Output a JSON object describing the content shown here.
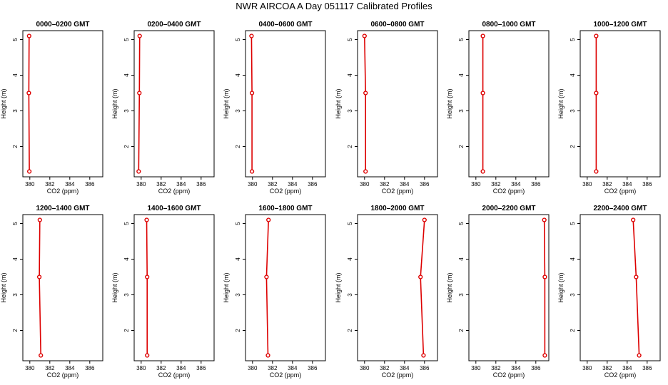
{
  "title": "NWR AIRCOA A  Day 051117  Calibrated Profiles",
  "colors": {
    "profile": "#dd0000",
    "axis": "#000000",
    "background": "#ffffff"
  },
  "chart_data": [
    {
      "type": "line",
      "title": "0000–0200 GMT",
      "xlabel": "CO2 (ppm)",
      "ylabel": "Height (m)",
      "xlim": [
        379.3,
        387.3
      ],
      "ylim": [
        1.15,
        5.25
      ],
      "xticks": [
        380,
        382,
        384,
        386
      ],
      "yticks": [
        2,
        3,
        4,
        5
      ],
      "x": [
        379.95,
        379.9,
        379.93
      ],
      "y": [
        1.3,
        3.5,
        5.1
      ],
      "grid": false
    },
    {
      "type": "line",
      "title": "0200–0400 GMT",
      "xlabel": "CO2 (ppm)",
      "ylabel": "Height (m)",
      "xlim": [
        379.3,
        387.3
      ],
      "ylim": [
        1.15,
        5.25
      ],
      "xticks": [
        380,
        382,
        384,
        386
      ],
      "yticks": [
        2,
        3,
        4,
        5
      ],
      "x": [
        379.75,
        379.82,
        379.85
      ],
      "y": [
        1.3,
        3.5,
        5.1
      ],
      "grid": false
    },
    {
      "type": "line",
      "title": "0400–0600 GMT",
      "xlabel": "CO2 (ppm)",
      "ylabel": "Height (m)",
      "xlim": [
        379.3,
        387.3
      ],
      "ylim": [
        1.15,
        5.25
      ],
      "xticks": [
        380,
        382,
        384,
        386
      ],
      "yticks": [
        2,
        3,
        4,
        5
      ],
      "x": [
        379.95,
        379.95,
        379.9
      ],
      "y": [
        1.3,
        3.5,
        5.1
      ],
      "grid": false
    },
    {
      "type": "line",
      "title": "0600–0800 GMT",
      "xlabel": "CO2 (ppm)",
      "ylabel": "Height (m)",
      "xlim": [
        379.3,
        387.3
      ],
      "ylim": [
        1.15,
        5.25
      ],
      "xticks": [
        380,
        382,
        384,
        386
      ],
      "yticks": [
        2,
        3,
        4,
        5
      ],
      "x": [
        380.1,
        380.1,
        380.0
      ],
      "y": [
        1.3,
        3.5,
        5.1
      ],
      "grid": false
    },
    {
      "type": "line",
      "title": "0800–1000 GMT",
      "xlabel": "CO2 (ppm)",
      "ylabel": "Height (m)",
      "xlim": [
        379.3,
        387.3
      ],
      "ylim": [
        1.15,
        5.25
      ],
      "xticks": [
        380,
        382,
        384,
        386
      ],
      "yticks": [
        2,
        3,
        4,
        5
      ],
      "x": [
        380.7,
        380.7,
        380.7
      ],
      "y": [
        1.3,
        3.5,
        5.1
      ],
      "grid": false
    },
    {
      "type": "line",
      "title": "1000–1200 GMT",
      "xlabel": "CO2 (ppm)",
      "ylabel": "Height (m)",
      "xlim": [
        379.3,
        387.3
      ],
      "ylim": [
        1.15,
        5.25
      ],
      "xticks": [
        380,
        382,
        384,
        386
      ],
      "yticks": [
        2,
        3,
        4,
        5
      ],
      "x": [
        380.9,
        380.9,
        380.9
      ],
      "y": [
        1.3,
        3.5,
        5.1
      ],
      "grid": false
    },
    {
      "type": "line",
      "title": "1200–1400 GMT",
      "xlabel": "CO2 (ppm)",
      "ylabel": "Height (m)",
      "xlim": [
        379.3,
        387.3
      ],
      "ylim": [
        1.15,
        5.25
      ],
      "xticks": [
        380,
        382,
        384,
        386
      ],
      "yticks": [
        2,
        3,
        4,
        5
      ],
      "x": [
        381.1,
        380.95,
        381.0
      ],
      "y": [
        1.3,
        3.5,
        5.1
      ],
      "grid": false
    },
    {
      "type": "line",
      "title": "1400–1600 GMT",
      "xlabel": "CO2 (ppm)",
      "ylabel": "Height (m)",
      "xlim": [
        379.3,
        387.3
      ],
      "ylim": [
        1.15,
        5.25
      ],
      "xticks": [
        380,
        382,
        384,
        386
      ],
      "yticks": [
        2,
        3,
        4,
        5
      ],
      "x": [
        380.6,
        380.6,
        380.55
      ],
      "y": [
        1.3,
        3.5,
        5.1
      ],
      "grid": false
    },
    {
      "type": "line",
      "title": "1600–1800 GMT",
      "xlabel": "CO2 (ppm)",
      "ylabel": "Height (m)",
      "xlim": [
        379.3,
        387.3
      ],
      "ylim": [
        1.15,
        5.25
      ],
      "xticks": [
        380,
        382,
        384,
        386
      ],
      "yticks": [
        2,
        3,
        4,
        5
      ],
      "x": [
        381.55,
        381.4,
        381.6
      ],
      "y": [
        1.3,
        3.5,
        5.1
      ],
      "grid": false
    },
    {
      "type": "line",
      "title": "1800–2000 GMT",
      "xlabel": "CO2 (ppm)",
      "ylabel": "Height (m)",
      "xlim": [
        379.3,
        387.3
      ],
      "ylim": [
        1.15,
        5.25
      ],
      "xticks": [
        380,
        382,
        384,
        386
      ],
      "yticks": [
        2,
        3,
        4,
        5
      ],
      "x": [
        385.9,
        385.6,
        386.0
      ],
      "y": [
        1.3,
        3.5,
        5.1
      ],
      "grid": false
    },
    {
      "type": "line",
      "title": "2000–2200 GMT",
      "xlabel": "CO2 (ppm)",
      "ylabel": "Height (m)",
      "xlim": [
        379.3,
        387.3
      ],
      "ylim": [
        1.15,
        5.25
      ],
      "xticks": [
        380,
        382,
        384,
        386
      ],
      "yticks": [
        2,
        3,
        4,
        5
      ],
      "x": [
        386.9,
        386.9,
        386.85
      ],
      "y": [
        1.3,
        3.5,
        5.1
      ],
      "grid": false
    },
    {
      "type": "line",
      "title": "2200–2400 GMT",
      "xlabel": "CO2 (ppm)",
      "ylabel": "Height (m)",
      "xlim": [
        379.3,
        387.3
      ],
      "ylim": [
        1.15,
        5.25
      ],
      "xticks": [
        380,
        382,
        384,
        386
      ],
      "yticks": [
        2,
        3,
        4,
        5
      ],
      "x": [
        385.2,
        384.9,
        384.6
      ],
      "y": [
        1.3,
        3.5,
        5.1
      ],
      "grid": false
    }
  ]
}
